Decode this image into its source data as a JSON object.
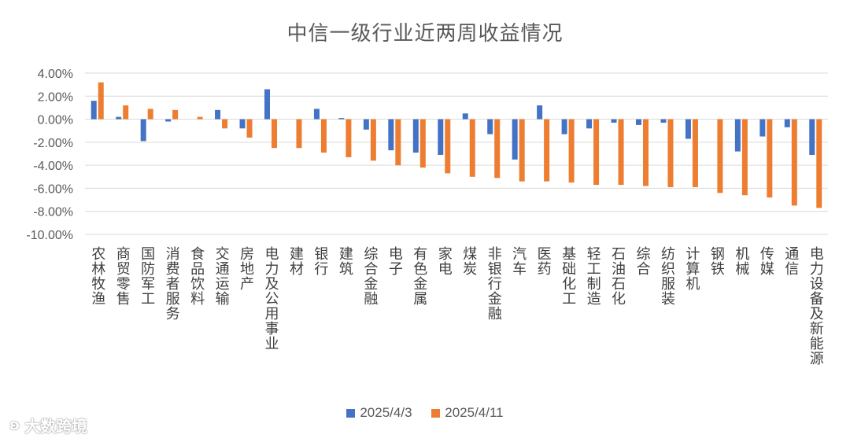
{
  "chart_data": {
    "type": "bar",
    "title": "中信一级行业近两周收益情况",
    "ylim": [
      -10,
      4
    ],
    "ytick_step": 2,
    "ytick_format": "percent_2dp",
    "grid": true,
    "legend_position": "bottom",
    "categories": [
      "农林牧渔",
      "商贸零售",
      "国防军工",
      "消费者服务",
      "食品饮料",
      "交通运输",
      "房地产",
      "电力及公用事业",
      "建材",
      "银行",
      "建筑",
      "综合金融",
      "电子",
      "有色金属",
      "家电",
      "煤炭",
      "非银行金融",
      "汽车",
      "医药",
      "基础化工",
      "轻工制造",
      "石油石化",
      "综合",
      "纺织服装",
      "计算机",
      "钢铁",
      "机械",
      "传媒",
      "通信",
      "电力设备及新能源"
    ],
    "series": [
      {
        "name": "2025/4/3",
        "color": "#4472C4",
        "values": [
          1.6,
          0.2,
          -1.9,
          -0.2,
          0.0,
          0.8,
          -0.8,
          2.6,
          0.0,
          0.9,
          0.1,
          -0.9,
          -2.7,
          -2.9,
          -3.1,
          0.5,
          -1.3,
          -3.5,
          1.2,
          -1.3,
          -0.8,
          -0.3,
          -0.5,
          -0.3,
          -1.7,
          0.0,
          -2.8,
          -1.5,
          -0.7,
          -3.1
        ]
      },
      {
        "name": "2025/4/11",
        "color": "#ED7D31",
        "values": [
          3.2,
          1.2,
          0.9,
          0.8,
          0.2,
          -0.8,
          -1.6,
          -2.5,
          -2.5,
          -2.9,
          -3.3,
          -3.6,
          -4.0,
          -4.2,
          -4.7,
          -5.0,
          -5.1,
          -5.4,
          -5.4,
          -5.5,
          -5.7,
          -5.7,
          -5.8,
          -5.9,
          -5.9,
          -6.4,
          -6.6,
          -6.8,
          -7.5,
          -7.7
        ]
      }
    ]
  },
  "watermark": {
    "text": "大数跨境"
  }
}
